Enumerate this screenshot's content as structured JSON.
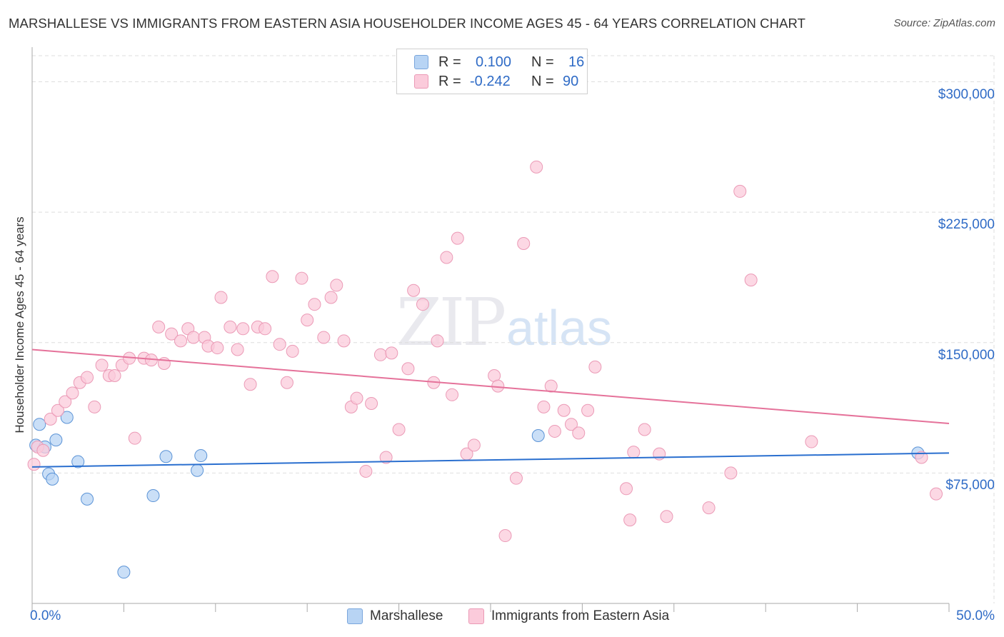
{
  "title": "MARSHALLESE VS IMMIGRANTS FROM EASTERN ASIA HOUSEHOLDER INCOME AGES 45 - 64 YEARS CORRELATION CHART",
  "source": "Source: ZipAtlas.com",
  "watermark": {
    "zip": "ZIP",
    "atlas": "atlas"
  },
  "legend": {
    "rows": [
      {
        "r_label": "R =",
        "r_value": "0.100",
        "n_label": "N =",
        "n_value": "16",
        "color": "#b8d4f4"
      },
      {
        "r_label": "R =",
        "r_value": "-0.242",
        "n_label": "N =",
        "n_value": "90",
        "color": "#fbcbdb"
      }
    ]
  },
  "bottom_legend": [
    {
      "label": "Marshallese",
      "color": "#b8d4f4"
    },
    {
      "label": "Immigrants from Eastern Asia",
      "color": "#fbcbdb"
    }
  ],
  "chart_data": {
    "type": "scatter",
    "title": "MARSHALLESE VS IMMIGRANTS FROM EASTERN ASIA HOUSEHOLDER INCOME AGES 45 - 64 YEARS CORRELATION CHART",
    "xlabel": "",
    "ylabel": "Householder Income Ages 45 - 64 years",
    "xlim": [
      0,
      50
    ],
    "ylim": [
      0,
      315000
    ],
    "x_tick_labels": [
      "0.0%",
      "50.0%"
    ],
    "y_ticks": [
      75000,
      150000,
      225000,
      300000
    ],
    "y_tick_labels": [
      "$75,000",
      "$150,000",
      "$225,000",
      "$300,000"
    ],
    "grid": true,
    "series": [
      {
        "name": "Marshallese",
        "color": "#5b93d6",
        "fill": "#b8d4f4",
        "trend": {
          "x": [
            0,
            50
          ],
          "y": [
            78500,
            86500
          ],
          "color": "#2a6fcf"
        },
        "points": [
          {
            "x": 0.2,
            "y": 91000
          },
          {
            "x": 0.4,
            "y": 103000
          },
          {
            "x": 0.7,
            "y": 90000
          },
          {
            "x": 0.9,
            "y": 74500
          },
          {
            "x": 1.1,
            "y": 71500
          },
          {
            "x": 1.3,
            "y": 94000
          },
          {
            "x": 1.9,
            "y": 107000
          },
          {
            "x": 2.5,
            "y": 81500
          },
          {
            "x": 3.0,
            "y": 60000
          },
          {
            "x": 5.0,
            "y": 18000
          },
          {
            "x": 6.6,
            "y": 62000
          },
          {
            "x": 7.3,
            "y": 84500
          },
          {
            "x": 9.0,
            "y": 76500
          },
          {
            "x": 9.2,
            "y": 85000
          },
          {
            "x": 27.6,
            "y": 96500
          },
          {
            "x": 48.3,
            "y": 86500
          }
        ]
      },
      {
        "name": "Immigrants from Eastern Asia",
        "color": "#eb9ab6",
        "fill": "#fbcbdb",
        "trend": {
          "x": [
            0,
            50
          ],
          "y": [
            146000,
            103500
          ],
          "color": "#e5729a"
        },
        "points": [
          {
            "x": 0.1,
            "y": 80000
          },
          {
            "x": 0.3,
            "y": 90000
          },
          {
            "x": 0.6,
            "y": 88000
          },
          {
            "x": 1.0,
            "y": 106000
          },
          {
            "x": 1.4,
            "y": 111000
          },
          {
            "x": 1.8,
            "y": 116000
          },
          {
            "x": 2.2,
            "y": 121000
          },
          {
            "x": 2.6,
            "y": 127000
          },
          {
            "x": 3.0,
            "y": 130000
          },
          {
            "x": 3.4,
            "y": 113000
          },
          {
            "x": 3.8,
            "y": 137000
          },
          {
            "x": 4.2,
            "y": 131000
          },
          {
            "x": 4.5,
            "y": 131000
          },
          {
            "x": 4.9,
            "y": 137000
          },
          {
            "x": 5.3,
            "y": 141000
          },
          {
            "x": 5.6,
            "y": 95000
          },
          {
            "x": 6.1,
            "y": 141000
          },
          {
            "x": 6.5,
            "y": 140000
          },
          {
            "x": 6.9,
            "y": 159000
          },
          {
            "x": 7.2,
            "y": 138000
          },
          {
            "x": 7.6,
            "y": 155000
          },
          {
            "x": 8.1,
            "y": 151000
          },
          {
            "x": 8.5,
            "y": 158000
          },
          {
            "x": 8.8,
            "y": 153000
          },
          {
            "x": 9.4,
            "y": 153000
          },
          {
            "x": 9.6,
            "y": 148000
          },
          {
            "x": 10.1,
            "y": 147000
          },
          {
            "x": 10.3,
            "y": 176000
          },
          {
            "x": 10.8,
            "y": 159000
          },
          {
            "x": 11.2,
            "y": 146000
          },
          {
            "x": 11.5,
            "y": 158000
          },
          {
            "x": 11.9,
            "y": 126000
          },
          {
            "x": 12.3,
            "y": 159000
          },
          {
            "x": 12.7,
            "y": 158000
          },
          {
            "x": 13.1,
            "y": 188000
          },
          {
            "x": 13.5,
            "y": 149000
          },
          {
            "x": 13.9,
            "y": 127000
          },
          {
            "x": 14.2,
            "y": 145000
          },
          {
            "x": 14.7,
            "y": 187000
          },
          {
            "x": 15.0,
            "y": 163000
          },
          {
            "x": 15.4,
            "y": 172000
          },
          {
            "x": 15.9,
            "y": 153000
          },
          {
            "x": 16.3,
            "y": 176000
          },
          {
            "x": 16.6,
            "y": 183000
          },
          {
            "x": 17.0,
            "y": 151000
          },
          {
            "x": 17.4,
            "y": 113000
          },
          {
            "x": 17.7,
            "y": 118000
          },
          {
            "x": 18.2,
            "y": 76000
          },
          {
            "x": 18.5,
            "y": 115000
          },
          {
            "x": 19.0,
            "y": 143000
          },
          {
            "x": 19.3,
            "y": 84000
          },
          {
            "x": 19.6,
            "y": 144000
          },
          {
            "x": 20.0,
            "y": 100000
          },
          {
            "x": 20.5,
            "y": 135000
          },
          {
            "x": 20.8,
            "y": 180000
          },
          {
            "x": 21.3,
            "y": 172000
          },
          {
            "x": 21.9,
            "y": 127000
          },
          {
            "x": 22.1,
            "y": 151000
          },
          {
            "x": 22.6,
            "y": 199000
          },
          {
            "x": 22.9,
            "y": 120000
          },
          {
            "x": 23.2,
            "y": 210000
          },
          {
            "x": 23.7,
            "y": 86000
          },
          {
            "x": 24.1,
            "y": 91000
          },
          {
            "x": 25.2,
            "y": 131000
          },
          {
            "x": 25.4,
            "y": 125000
          },
          {
            "x": 25.8,
            "y": 39000
          },
          {
            "x": 26.4,
            "y": 72000
          },
          {
            "x": 26.8,
            "y": 207000
          },
          {
            "x": 27.5,
            "y": 251000
          },
          {
            "x": 27.9,
            "y": 113000
          },
          {
            "x": 28.3,
            "y": 125000
          },
          {
            "x": 28.5,
            "y": 99000
          },
          {
            "x": 29.0,
            "y": 111000
          },
          {
            "x": 29.4,
            "y": 103000
          },
          {
            "x": 29.8,
            "y": 98000
          },
          {
            "x": 30.3,
            "y": 111000
          },
          {
            "x": 30.7,
            "y": 136000
          },
          {
            "x": 32.4,
            "y": 66000
          },
          {
            "x": 32.6,
            "y": 48000
          },
          {
            "x": 32.8,
            "y": 87000
          },
          {
            "x": 33.4,
            "y": 100000
          },
          {
            "x": 34.2,
            "y": 86000
          },
          {
            "x": 34.6,
            "y": 50000
          },
          {
            "x": 36.9,
            "y": 55000
          },
          {
            "x": 38.1,
            "y": 75000
          },
          {
            "x": 38.6,
            "y": 237000
          },
          {
            "x": 39.2,
            "y": 186000
          },
          {
            "x": 42.5,
            "y": 93000
          },
          {
            "x": 48.5,
            "y": 84000
          },
          {
            "x": 49.3,
            "y": 63000
          }
        ]
      }
    ]
  }
}
